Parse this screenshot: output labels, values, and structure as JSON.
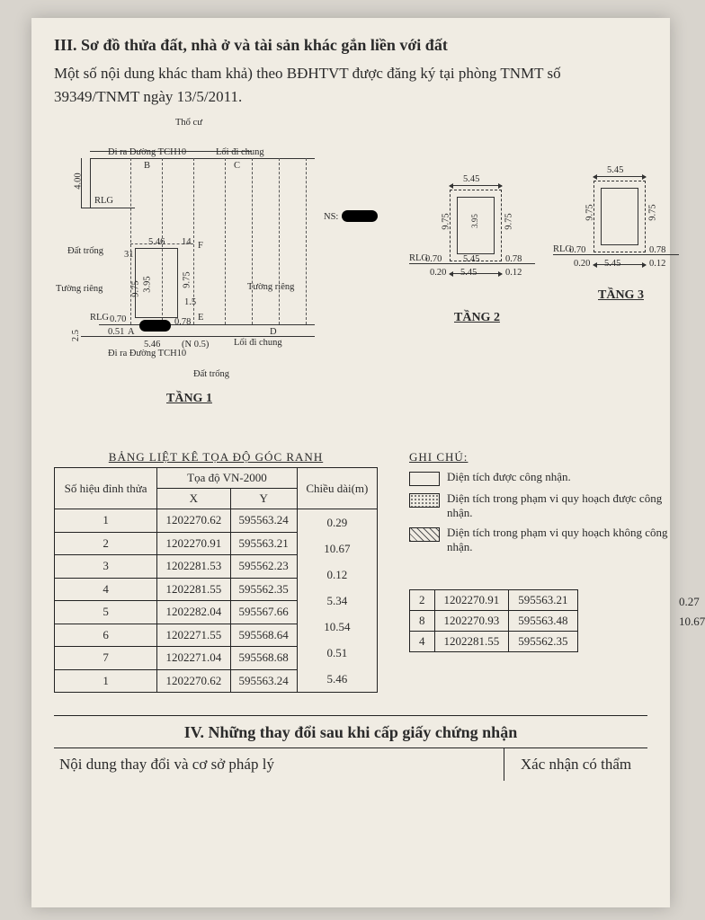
{
  "section3": {
    "title": "III. Sơ đồ thửa đất, nhà ở và tài sản khác gắn liền với đất",
    "paragraph": "Một số nội dung khác tham khả) theo BĐHTVT được đăng ký tại phòng TNMT số 39349/TNMT ngày 13/5/2011."
  },
  "diagram": {
    "labels": {
      "tho_cu": "Thổ cư",
      "road1": "Đi ra Đường TCH10",
      "road2": "Đi ra Đường TCH10",
      "loi_chung1": "Lối đi chung",
      "loi_chung2": "Lối đi chung",
      "rlg": "RLG",
      "dat_trong": "Đất trống",
      "tuong_rieng": "Tường riêng",
      "ns": "NS:",
      "floor1": "TẦNG 1",
      "floor2": "TẦNG 2",
      "floor3": "TẦNG 3",
      "b": "B",
      "c": "C",
      "d": "D",
      "e": "E",
      "f": "F",
      "a": "A",
      "dn": "(N 0.5)"
    },
    "dims": {
      "d400": "4.00",
      "d546a": "5.46",
      "d546b": "5.46",
      "d975": "9.75",
      "d070": "0.70",
      "d051": "0.51",
      "d078": "0.78",
      "d395": "3.95",
      "d545a": "5.45",
      "d545b": "5.45",
      "d020": "0.20",
      "d012": "0.12",
      "d14": "14",
      "d25": "2.5",
      "d31": "31",
      "d15": "1.5"
    }
  },
  "coord_table": {
    "title": "BẢNG LIỆT KÊ TỌA ĐỘ GÓC RANH",
    "headers": {
      "id": "Số hiệu\nđỉnh thửa",
      "sys": "Tọa độ VN-2000",
      "x": "X",
      "y": "Y",
      "len": "Chiều dài(m)"
    },
    "rows": [
      {
        "id": "1",
        "x": "1202270.62",
        "y": "595563.24"
      },
      {
        "id": "2",
        "x": "1202270.91",
        "y": "595563.21"
      },
      {
        "id": "3",
        "x": "1202281.53",
        "y": "595562.23"
      },
      {
        "id": "4",
        "x": "1202281.55",
        "y": "595562.35"
      },
      {
        "id": "5",
        "x": "1202282.04",
        "y": "595567.66"
      },
      {
        "id": "6",
        "x": "1202271.55",
        "y": "595568.64"
      },
      {
        "id": "7",
        "x": "1202271.04",
        "y": "595568.68"
      },
      {
        "id": "1",
        "x": "1202270.62",
        "y": "595563.24"
      }
    ],
    "lengths": [
      "0.29",
      "10.67",
      "0.12",
      "5.34",
      "10.54",
      "0.51",
      "5.46"
    ]
  },
  "legend": {
    "title": "GHI CHÚ:",
    "items": [
      {
        "type": "plain",
        "text": "Diện tích được công nhận."
      },
      {
        "type": "dotted",
        "text": "Diện tích trong phạm vi quy hoạch được công nhận."
      },
      {
        "type": "hatched",
        "text": "Diện tích trong phạm vi quy hoạch không công nhận."
      }
    ]
  },
  "coord_table2": {
    "rows": [
      {
        "id": "2",
        "x": "1202270.91",
        "y": "595563.21"
      },
      {
        "id": "8",
        "x": "1202270.93",
        "y": "595563.48"
      },
      {
        "id": "4",
        "x": "1202281.55",
        "y": "595562.35"
      }
    ],
    "lengths": [
      "0.27",
      "10.67"
    ]
  },
  "section4": {
    "title": "IV. Những thay đổi sau khi cấp giấy chứng nhận",
    "left": "Nội dung thay đổi và cơ sở pháp lý",
    "right": "Xác nhận\ncó thẩm"
  }
}
